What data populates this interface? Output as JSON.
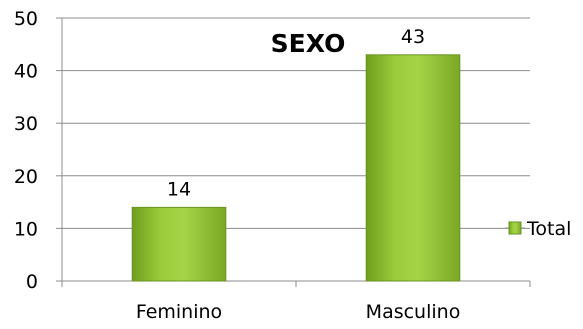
{
  "chart_data": {
    "type": "bar",
    "title": "SEXO",
    "categories": [
      "Feminino",
      "Masculino"
    ],
    "series": [
      {
        "name": "Total",
        "values": [
          14,
          43
        ],
        "color": "#8cbc2e"
      }
    ],
    "ylim": [
      0,
      50
    ],
    "yticks": [
      0,
      10,
      20,
      30,
      40,
      50
    ],
    "grid": true,
    "legend": "right",
    "data_labels": true
  }
}
